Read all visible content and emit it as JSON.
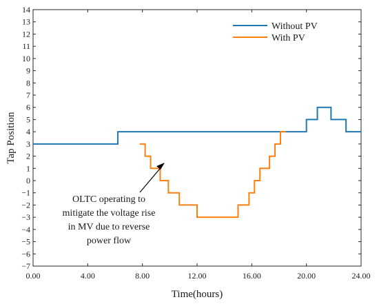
{
  "chart_data": {
    "type": "line",
    "title": "",
    "xlabel": "Time(hours)",
    "ylabel": "Tap Position",
    "xlim": [
      0,
      24
    ],
    "ylim": [
      -7,
      14
    ],
    "x_ticks": [
      0,
      4,
      8,
      12,
      16,
      20,
      24
    ],
    "x_tick_labels": [
      "0.00",
      "4.00",
      "8.00",
      "12.00",
      "16.00",
      "20.00",
      "24.00"
    ],
    "y_ticks": [
      -7,
      -6,
      -5,
      -4,
      -3,
      -2,
      -1,
      0,
      1,
      2,
      3,
      4,
      5,
      6,
      7,
      8,
      9,
      10,
      11,
      12,
      13,
      14
    ],
    "y_tick_labels": [
      "−7",
      "−6",
      "−5",
      "−4",
      "−3",
      "−2",
      "−1",
      "0",
      "1",
      "2",
      "3",
      "4",
      "5",
      "6",
      "7",
      "8",
      "9",
      "10",
      "11",
      "12",
      "13",
      "14"
    ],
    "legend_position": "top-right",
    "grid": false,
    "series": [
      {
        "name": "Without PV",
        "color": "#1f77b4",
        "step": true,
        "x": [
          0,
          6.2,
          20.0,
          20.8,
          21.8,
          22.9,
          24.0
        ],
        "y": [
          3,
          4,
          5,
          6,
          5,
          4,
          4
        ]
      },
      {
        "name": "With PV",
        "color": "#ff7f0e",
        "step": true,
        "x": [
          7.8,
          8.2,
          8.6,
          9.3,
          9.9,
          10.7,
          12.0,
          15.0,
          15.8,
          16.2,
          16.6,
          17.3,
          17.7,
          18.1,
          18.5
        ],
        "y": [
          3,
          2,
          1,
          0,
          -1,
          -2,
          -3,
          -2,
          -1,
          0,
          1,
          2,
          3,
          4,
          4
        ]
      }
    ],
    "annotation": {
      "lines": [
        "OLTC operating to",
        "mitigate the voltage rise",
        "in MV due to reverse",
        "power flow"
      ],
      "arrow_to": [
        9.5,
        -0.2
      ]
    }
  }
}
